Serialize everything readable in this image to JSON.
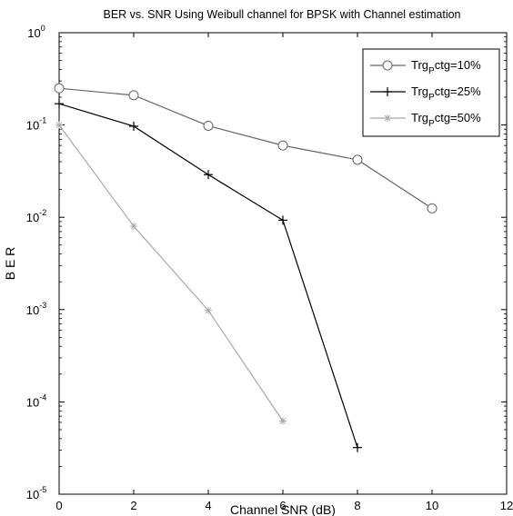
{
  "chart_data": {
    "type": "line",
    "title": "BER vs. SNR Using Weibull channel for BPSK with Channel estimation",
    "xlabel": "Channel SNR (dB)",
    "ylabel": "B E R",
    "xlim": [
      0,
      12
    ],
    "ylim": [
      1e-05,
      1
    ],
    "yscale": "log",
    "xticks": [
      "0",
      "2",
      "4",
      "6",
      "8",
      "10",
      "12"
    ],
    "yticks": [
      {
        "value": 1,
        "base": "10",
        "exp": "0"
      },
      {
        "value": 0.1,
        "base": "10",
        "exp": "-1"
      },
      {
        "value": 0.01,
        "base": "10",
        "exp": "-2"
      },
      {
        "value": 0.001,
        "base": "10",
        "exp": "-3"
      },
      {
        "value": 0.0001,
        "base": "10",
        "exp": "-4"
      },
      {
        "value": 1e-05,
        "base": "10",
        "exp": "-5"
      }
    ],
    "grid": false,
    "legend_position": "top-right",
    "series": [
      {
        "legend": {
          "pre": "Trg",
          "sub": "P",
          "post": "ctg=10%"
        },
        "marker": "circle",
        "color": "#666666",
        "x": [
          0,
          2,
          4,
          6,
          8,
          10
        ],
        "y": [
          0.25,
          0.21,
          0.098,
          0.06,
          0.042,
          0.0125
        ]
      },
      {
        "legend": {
          "pre": "Trg",
          "sub": "P",
          "post": "ctg=25%"
        },
        "marker": "plus",
        "color": "#000000",
        "x": [
          0,
          2,
          4,
          6,
          8
        ],
        "y": [
          0.17,
          0.097,
          0.029,
          0.0093,
          3.2e-05
        ]
      },
      {
        "legend": {
          "pre": "Trg",
          "sub": "P",
          "post": "ctg=50%"
        },
        "marker": "star",
        "color": "#a9a9a9",
        "x": [
          0,
          2,
          4,
          6
        ],
        "y": [
          0.1,
          0.008,
          0.00098,
          6.2e-05
        ]
      }
    ]
  }
}
